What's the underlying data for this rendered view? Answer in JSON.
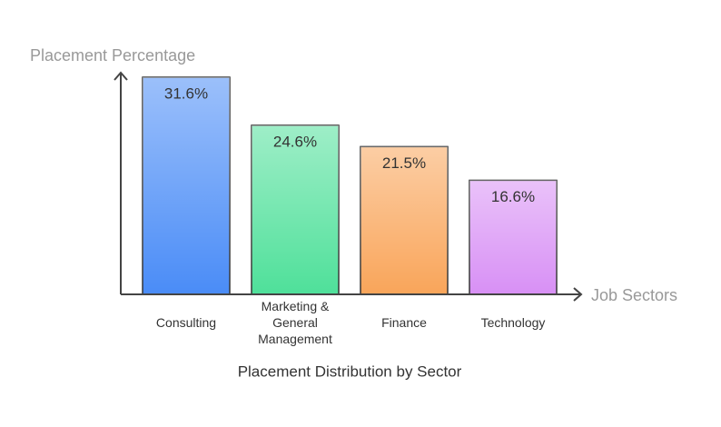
{
  "chart_data": {
    "type": "bar",
    "title": "Placement Distribution by Sector",
    "y_label": "Placement Percentage",
    "x_label": "Job Sectors",
    "categories": [
      "Consulting",
      "Marketing & General Management",
      "Finance",
      "Technology"
    ],
    "values": [
      31.6,
      24.6,
      21.5,
      16.6
    ],
    "value_labels": [
      "31.6%",
      "24.6%",
      "21.5%",
      "16.6%"
    ],
    "colors": [
      "#4a8cf7",
      "#4fe09a",
      "#f9a55a",
      "#d890f5"
    ],
    "ylim": [
      0,
      32
    ]
  }
}
